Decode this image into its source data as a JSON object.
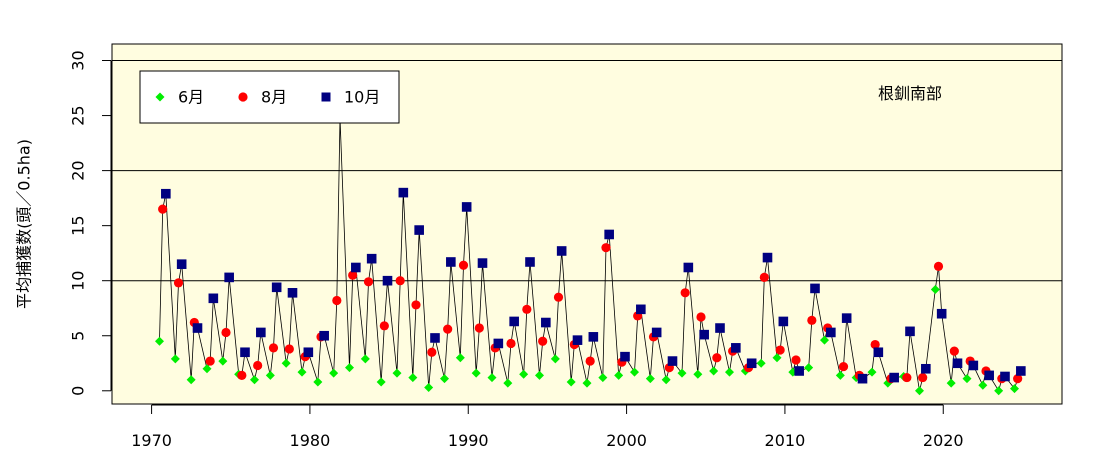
{
  "chart_data": {
    "type": "line",
    "title": "",
    "xlabel": "",
    "ylabel": "平均捕獲数(頭／0.5ha)",
    "xlim": [
      1967.5,
      2027.5
    ],
    "ylim": [
      -1.2,
      31.5
    ],
    "x_ticks": [
      "1970",
      "1980",
      "1990",
      "2000",
      "2010",
      "2020"
    ],
    "y_ticks": [
      "0",
      "5",
      "10",
      "15",
      "20",
      "25",
      "30"
    ],
    "gridlines_y": [
      10,
      20,
      30
    ],
    "background": "#fffde0",
    "annotation": "根釧南部",
    "legend_position": "top-left",
    "connected_in_time_order": true,
    "series": [
      {
        "name": "6月",
        "marker": "diamond",
        "color": "#00ee00",
        "points": [
          [
            1970.5,
            4.5
          ],
          [
            1971.5,
            2.9
          ],
          [
            1972.5,
            1.0
          ],
          [
            1973.5,
            2.0
          ],
          [
            1974.5,
            2.7
          ],
          [
            1975.5,
            1.5
          ],
          [
            1976.5,
            1.0
          ],
          [
            1977.5,
            1.4
          ],
          [
            1978.5,
            2.5
          ],
          [
            1979.5,
            1.7
          ],
          [
            1980.5,
            0.8
          ],
          [
            1981.5,
            1.6
          ],
          [
            1982.5,
            2.1
          ],
          [
            1983.5,
            2.9
          ],
          [
            1984.5,
            0.8
          ],
          [
            1985.5,
            1.6
          ],
          [
            1986.5,
            1.2
          ],
          [
            1987.5,
            0.3
          ],
          [
            1988.5,
            1.1
          ],
          [
            1989.5,
            3.0
          ],
          [
            1990.5,
            1.6
          ],
          [
            1991.5,
            1.2
          ],
          [
            1992.5,
            0.7
          ],
          [
            1993.5,
            1.5
          ],
          [
            1994.5,
            1.4
          ],
          [
            1995.5,
            2.9
          ],
          [
            1996.5,
            0.8
          ],
          [
            1997.5,
            0.7
          ],
          [
            1998.5,
            1.2
          ],
          [
            1999.5,
            1.4
          ],
          [
            2000.5,
            1.7
          ],
          [
            2001.5,
            1.1
          ],
          [
            2002.5,
            1.0
          ],
          [
            2003.5,
            1.6
          ],
          [
            2004.5,
            1.5
          ],
          [
            2005.5,
            1.8
          ],
          [
            2006.5,
            1.7
          ],
          [
            2007.5,
            1.8
          ],
          [
            2008.5,
            2.5
          ],
          [
            2009.5,
            3.0
          ],
          [
            2010.5,
            1.7
          ],
          [
            2011.5,
            2.1
          ],
          [
            2012.5,
            4.6
          ],
          [
            2013.5,
            1.4
          ],
          [
            2014.5,
            1.2
          ],
          [
            2015.5,
            1.7
          ],
          [
            2016.5,
            0.7
          ],
          [
            2017.5,
            1.3
          ],
          [
            2018.5,
            0.0
          ],
          [
            2019.5,
            9.2
          ],
          [
            2020.5,
            0.7
          ],
          [
            2021.5,
            1.1
          ],
          [
            2022.5,
            0.5
          ],
          [
            2023.5,
            0.0
          ],
          [
            2024.5,
            0.2
          ]
        ]
      },
      {
        "name": "8月",
        "marker": "circle",
        "color": "#ff0000",
        "points": [
          [
            1970.7,
            16.5
          ],
          [
            1971.7,
            9.8
          ],
          [
            1972.7,
            6.2
          ],
          [
            1973.7,
            2.7
          ],
          [
            1974.7,
            5.3
          ],
          [
            1975.7,
            1.4
          ],
          [
            1976.7,
            2.3
          ],
          [
            1977.7,
            3.9
          ],
          [
            1978.7,
            3.8
          ],
          [
            1979.7,
            3.1
          ],
          [
            1980.7,
            4.9
          ],
          [
            1981.7,
            8.2
          ],
          [
            1982.7,
            10.5
          ],
          [
            1983.7,
            9.9
          ],
          [
            1984.7,
            5.9
          ],
          [
            1985.7,
            10.0
          ],
          [
            1986.7,
            7.8
          ],
          [
            1987.7,
            3.5
          ],
          [
            1988.7,
            5.6
          ],
          [
            1989.7,
            11.4
          ],
          [
            1990.7,
            5.7
          ],
          [
            1991.7,
            3.9
          ],
          [
            1992.7,
            4.3
          ],
          [
            1993.7,
            7.4
          ],
          [
            1994.7,
            4.5
          ],
          [
            1995.7,
            8.5
          ],
          [
            1996.7,
            4.2
          ],
          [
            1997.7,
            2.7
          ],
          [
            1998.7,
            13.0
          ],
          [
            1999.7,
            2.6
          ],
          [
            2000.7,
            6.8
          ],
          [
            2001.7,
            4.9
          ],
          [
            2002.7,
            2.1
          ],
          [
            2003.7,
            8.9
          ],
          [
            2004.7,
            6.7
          ],
          [
            2005.7,
            3.0
          ],
          [
            2006.7,
            3.6
          ],
          [
            2007.7,
            2.1
          ],
          [
            2008.7,
            10.3
          ],
          [
            2009.7,
            3.7
          ],
          [
            2010.7,
            2.8
          ],
          [
            2011.7,
            6.4
          ],
          [
            2012.7,
            5.7
          ],
          [
            2013.7,
            2.2
          ],
          [
            2014.7,
            1.4
          ],
          [
            2015.7,
            4.2
          ],
          [
            2016.7,
            1.1
          ],
          [
            2017.7,
            1.2
          ],
          [
            2018.7,
            1.2
          ],
          [
            2019.7,
            11.3
          ],
          [
            2020.7,
            3.6
          ],
          [
            2021.7,
            2.7
          ],
          [
            2022.7,
            1.8
          ],
          [
            2023.7,
            1.1
          ],
          [
            2024.7,
            1.1
          ]
        ]
      },
      {
        "name": "10月",
        "marker": "square",
        "color": "#000080",
        "points": [
          [
            1970.9,
            17.9
          ],
          [
            1971.9,
            11.5
          ],
          [
            1972.9,
            5.7
          ],
          [
            1973.9,
            8.4
          ],
          [
            1974.9,
            10.3
          ],
          [
            1975.9,
            3.5
          ],
          [
            1976.9,
            5.3
          ],
          [
            1977.9,
            9.4
          ],
          [
            1978.9,
            8.9
          ],
          [
            1979.9,
            3.5
          ],
          [
            1980.9,
            5.0
          ],
          [
            1981.9,
            24.8
          ],
          [
            1982.9,
            11.2
          ],
          [
            1983.9,
            12.0
          ],
          [
            1984.9,
            10.0
          ],
          [
            1985.9,
            18.0
          ],
          [
            1986.9,
            14.6
          ],
          [
            1987.9,
            4.8
          ],
          [
            1988.9,
            11.7
          ],
          [
            1989.9,
            16.7
          ],
          [
            1990.9,
            11.6
          ],
          [
            1991.9,
            4.3
          ],
          [
            1992.9,
            6.3
          ],
          [
            1993.9,
            11.7
          ],
          [
            1994.9,
            6.2
          ],
          [
            1995.9,
            12.7
          ],
          [
            1996.9,
            4.6
          ],
          [
            1997.9,
            4.9
          ],
          [
            1998.9,
            14.2
          ],
          [
            1999.9,
            3.1
          ],
          [
            2000.9,
            7.4
          ],
          [
            2001.9,
            5.3
          ],
          [
            2002.9,
            2.7
          ],
          [
            2003.9,
            11.2
          ],
          [
            2004.9,
            5.1
          ],
          [
            2005.9,
            5.7
          ],
          [
            2006.9,
            3.9
          ],
          [
            2007.9,
            2.5
          ],
          [
            2008.9,
            12.1
          ],
          [
            2009.9,
            6.3
          ],
          [
            2010.9,
            1.8
          ],
          [
            2011.9,
            9.3
          ],
          [
            2012.9,
            5.3
          ],
          [
            2013.9,
            6.6
          ],
          [
            2014.9,
            1.1
          ],
          [
            2015.9,
            3.5
          ],
          [
            2016.9,
            1.2
          ],
          [
            2017.9,
            5.4
          ],
          [
            2018.9,
            2.0
          ],
          [
            2019.9,
            7.0
          ],
          [
            2020.9,
            2.5
          ],
          [
            2021.9,
            2.3
          ],
          [
            2022.9,
            1.4
          ],
          [
            2023.9,
            1.3
          ],
          [
            2024.9,
            1.8
          ]
        ]
      }
    ]
  }
}
